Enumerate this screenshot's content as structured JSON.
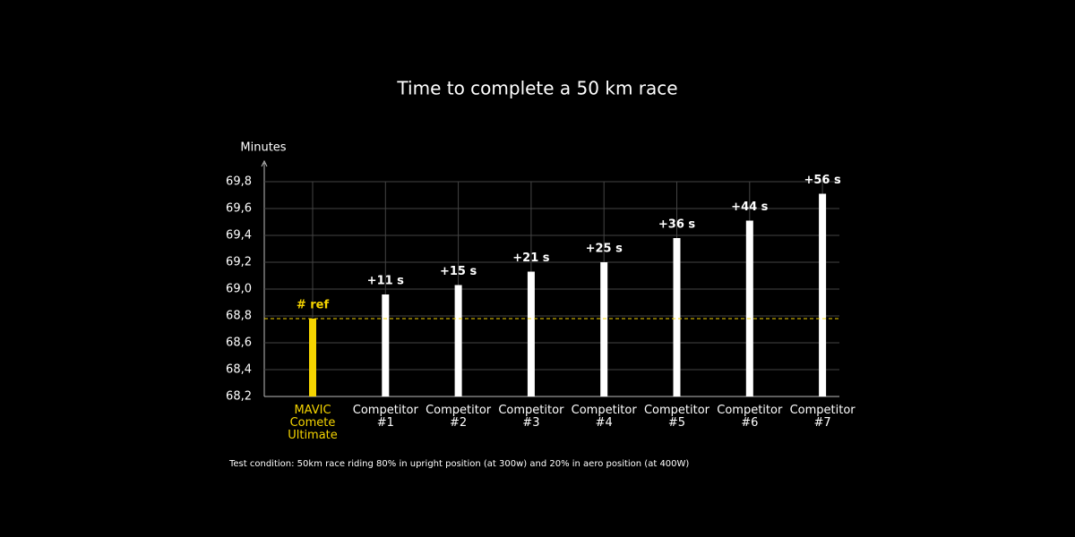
{
  "chart_data": {
    "type": "bar",
    "title": "Time to complete a 50 km race",
    "y_label": "Minutes",
    "categories": [
      "MAVIC\nComete\nUltimate",
      "Competitor\n#1",
      "Competitor\n#2",
      "Competitor\n#3",
      "Competitor\n#4",
      "Competitor\n#5",
      "Competitor\n#6",
      "Competitor\n#7"
    ],
    "values": [
      68.78,
      68.96,
      69.03,
      69.13,
      69.2,
      69.38,
      69.51,
      69.71
    ],
    "value_labels": [
      "# ref",
      "+11 s",
      "+15 s",
      "+21 s",
      "+25 s",
      "+36 s",
      "+44 s",
      "+56 s"
    ],
    "colors": [
      "#f5d400",
      "#ffffff",
      "#ffffff",
      "#ffffff",
      "#ffffff",
      "#ffffff",
      "#ffffff",
      "#ffffff"
    ],
    "reference_value": 68.78,
    "reference_color": "#f5d400",
    "ylim": [
      68.2,
      69.8
    ],
    "yticks": [
      {
        "value": 68.2,
        "label": "68,2"
      },
      {
        "value": 68.4,
        "label": "68,4"
      },
      {
        "value": 68.6,
        "label": "68,6"
      },
      {
        "value": 68.8,
        "label": "68,8"
      },
      {
        "value": 69.0,
        "label": "69,0"
      },
      {
        "value": 69.2,
        "label": "69,2"
      },
      {
        "value": 69.4,
        "label": "69,4"
      },
      {
        "value": 69.6,
        "label": "69,6"
      },
      {
        "value": 69.8,
        "label": "69,8"
      }
    ],
    "grid": true,
    "footnote": "Test condition: 50km race riding 80% in upright position (at 300w) and 20% in aero position (at 400W)"
  }
}
